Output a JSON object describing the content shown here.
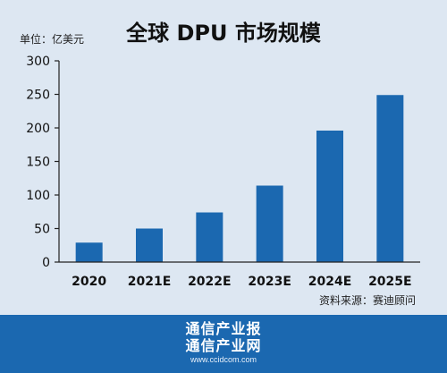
{
  "chart_data": {
    "type": "bar",
    "title": "全球 DPU 市场规模",
    "unit_label": "单位：亿美元",
    "categories": [
      "2020",
      "2021E",
      "2022E",
      "2023E",
      "2024E",
      "2025E"
    ],
    "values": [
      29,
      50,
      74,
      114,
      196,
      249
    ],
    "ylim": [
      0,
      300
    ],
    "yticks": [
      0,
      50,
      100,
      150,
      200,
      250,
      300
    ],
    "source": "资料来源：赛迪顾问",
    "bar_color": "#1b68b0",
    "grid": false
  },
  "footer": {
    "logo_line1": "通信产业报",
    "logo_line2": "通信产业网",
    "logo_url": "www.ccidcom.com",
    "background_color": "#1b68b0"
  }
}
